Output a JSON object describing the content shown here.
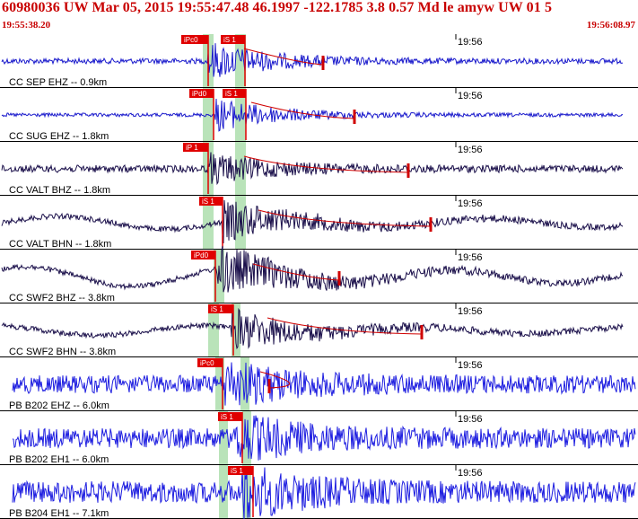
{
  "header": {
    "title": "60980036 UW Mar 05, 2015 19:55:47.48   46.1997 -122.1785  3.8 0.57 Md le amyw UW 01   5",
    "start_time": "19:55:38.20",
    "end_time": "19:56:08.97"
  },
  "colors": {
    "header_text": "#c80000",
    "trace_broadband": "#1a1acc",
    "trace_short": "#22228a",
    "trace_dark": "#1a0f4a",
    "pick_box": "#e00000",
    "window_band": "#b9e3b9",
    "coda_line": "#d00000"
  },
  "time_tick_label": "19:56",
  "traces": [
    {
      "label": "CC SEP EHZ -- 0.9km",
      "picks": [
        "iPc0",
        "iS 1"
      ],
      "style": "blue"
    },
    {
      "label": "CC SUG EHZ -- 1.8km",
      "picks": [
        "iPd0",
        "iS 1"
      ],
      "style": "blue"
    },
    {
      "label": "CC VALT BHZ -- 1.8km",
      "picks": [
        "iP 1"
      ],
      "style": "dark"
    },
    {
      "label": "CC VALT BHN -- 1.8km",
      "picks": [
        "iS 1"
      ],
      "style": "dark"
    },
    {
      "label": "CC SWF2 BHZ -- 3.8km",
      "picks": [
        "iPd0"
      ],
      "style": "dark"
    },
    {
      "label": "CC SWF2 BHN -- 3.8km",
      "picks": [
        "iS 1"
      ],
      "style": "dark"
    },
    {
      "label": "PB B202 EHZ -- 6.0km",
      "picks": [
        "iPc0"
      ],
      "style": "bright"
    },
    {
      "label": "PB B202 EH1 -- 6.0km",
      "picks": [
        "iS 1"
      ],
      "style": "bright"
    },
    {
      "label": "PB B204 EH1 -- 7.1km",
      "picks": [
        "iS 1"
      ],
      "style": "bright"
    }
  ]
}
